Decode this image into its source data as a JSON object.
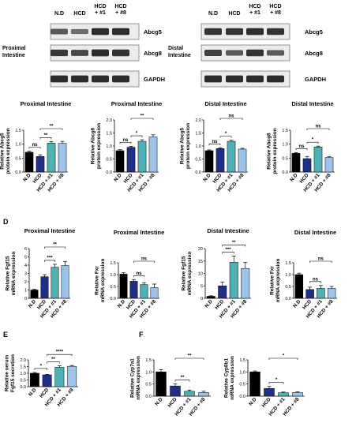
{
  "colors": {
    "nd": "#000000",
    "hcd": "#1f2f86",
    "hcd1": "#4fb0b6",
    "hcd8": "#9ec3e8",
    "blot_band": "#262626",
    "blot_bg": "#ececec"
  },
  "blots": [
    {
      "tissue": "Proximal Intestine",
      "tissue_lines": [
        "Proximal",
        "Intestine"
      ],
      "lanes": [
        "N.D",
        "HCD",
        "HCD + #1",
        "HCD + #8"
      ],
      "lane_lines": [
        [
          "N.D"
        ],
        [
          "HCD"
        ],
        [
          "HCD",
          "+ #1"
        ],
        [
          "HCD",
          "+ #8"
        ]
      ],
      "bands": [
        {
          "name": "Abcg5",
          "intensity": [
            0.6,
            0.45,
            0.95,
            0.95
          ]
        },
        {
          "name": "Abcg8",
          "intensity": [
            0.85,
            0.75,
            0.95,
            0.9
          ]
        },
        {
          "name": "GAPDH",
          "intensity": [
            0.95,
            0.95,
            0.95,
            0.95
          ]
        }
      ]
    },
    {
      "tissue": "Distal Intestine",
      "tissue_lines": [
        "Distal",
        "Intestine"
      ],
      "lanes": [
        "N.D",
        "HCD",
        "HCD + #1",
        "HCD + #8"
      ],
      "lane_lines": [
        [
          "N.D"
        ],
        [
          "HCD"
        ],
        [
          "HCD",
          "+ #1"
        ],
        [
          "HCD",
          "+ #8"
        ]
      ],
      "bands": [
        {
          "name": "Abcg5",
          "intensity": [
            0.9,
            0.9,
            0.95,
            0.9
          ]
        },
        {
          "name": "Abcg8",
          "intensity": [
            0.8,
            0.6,
            0.9,
            0.6
          ]
        },
        {
          "name": "GAPDH",
          "intensity": [
            0.95,
            0.95,
            0.95,
            0.95
          ]
        }
      ]
    }
  ],
  "panel_letters": [
    "D",
    "E",
    "F"
  ],
  "chart_data": [
    {
      "type": "bar",
      "title": "Proximal Intestine",
      "ylabel_lines": [
        "Relative Abcg5",
        "protein expression"
      ],
      "categories": [
        "N.D",
        "HCD",
        "HCD + #1",
        "HCD + #8"
      ],
      "values": [
        0.71,
        0.56,
        1.04,
        1.03
      ],
      "errors": [
        0.04,
        0.06,
        0.05,
        0.07
      ],
      "ylim": [
        0,
        1.5
      ],
      "yticks": [
        "0.0",
        "0.5",
        "1.0",
        "1.5"
      ],
      "sig": [
        {
          "a": 0,
          "b": 1,
          "label": "ns",
          "level": 1
        },
        {
          "a": 1,
          "b": 2,
          "label": "**",
          "level": 1
        },
        {
          "a": 1,
          "b": 3,
          "label": "**",
          "level": 2
        }
      ]
    },
    {
      "type": "bar",
      "title": "Proximal Intestine",
      "ylabel_lines": [
        "Relative Abcg8",
        "protein expression"
      ],
      "categories": [
        "N.D",
        "HCD",
        "HCD + #1",
        "HCD + #8"
      ],
      "values": [
        0.82,
        0.95,
        1.18,
        1.35
      ],
      "errors": [
        0.04,
        0.04,
        0.06,
        0.08
      ],
      "ylim": [
        0,
        2.0
      ],
      "yticks": [
        "0.0",
        "0.5",
        "1.0",
        "1.5",
        "2.0"
      ],
      "sig": [
        {
          "a": 0,
          "b": 1,
          "label": "ns",
          "level": 1
        },
        {
          "a": 1,
          "b": 2,
          "label": "*",
          "level": 1
        },
        {
          "a": 1,
          "b": 3,
          "label": "**",
          "level": 2
        }
      ]
    },
    {
      "type": "bar",
      "title": "Distal Intestine",
      "ylabel_lines": [
        "Relative Abcg5",
        "protein expression"
      ],
      "categories": [
        "N.D",
        "HCD",
        "HCD + #1",
        "HCD + #8"
      ],
      "values": [
        0.82,
        0.9,
        1.18,
        0.88
      ],
      "errors": [
        0.03,
        0.03,
        0.04,
        0.03
      ],
      "ylim": [
        0,
        2.0
      ],
      "yticks": [
        "0.0",
        "0.5",
        "1.0",
        "1.5",
        "2.0"
      ],
      "sig": [
        {
          "a": 0,
          "b": 1,
          "label": "ns",
          "level": 1
        },
        {
          "a": 1,
          "b": 2,
          "label": "*",
          "level": 1
        },
        {
          "a": 1,
          "b": 3,
          "label": "ns",
          "level": 2
        }
      ]
    },
    {
      "type": "bar",
      "title": "Distal Intestine",
      "ylabel_lines": [
        "Relative Abcg8",
        "protein expression"
      ],
      "categories": [
        "N.D",
        "HCD",
        "HCD + #1",
        "HCD + #8"
      ],
      "values": [
        0.67,
        0.48,
        0.9,
        0.52
      ],
      "errors": [
        0.03,
        0.08,
        0.03,
        0.03
      ],
      "ylim": [
        0,
        1.5
      ],
      "yticks": [
        "0.0",
        "0.5",
        "1.0",
        "1.5"
      ],
      "sig": [
        {
          "a": 0,
          "b": 1,
          "label": "ns",
          "level": 1
        },
        {
          "a": 1,
          "b": 2,
          "label": "*",
          "level": 1
        },
        {
          "a": 1,
          "b": 3,
          "label": "ns",
          "level": 2
        }
      ]
    },
    {
      "type": "bar",
      "title": "Proximal Intestine",
      "ylabel_lines": [
        "Relative Fgf15",
        "mRNA expression"
      ],
      "categories": [
        "N.D",
        "HCD",
        "HCD + #1",
        "HCD + #8"
      ],
      "values": [
        1.0,
        2.6,
        3.75,
        3.95
      ],
      "errors": [
        0.08,
        0.25,
        0.35,
        0.5
      ],
      "ylim": [
        0,
        6
      ],
      "yticks": [
        "0",
        "1",
        "2",
        "3",
        "4",
        "5",
        "6"
      ],
      "sig": [
        {
          "a": 1,
          "b": 2,
          "label": "***",
          "level": 1
        },
        {
          "a": 1,
          "b": 3,
          "label": "**",
          "level": 2
        }
      ]
    },
    {
      "type": "bar",
      "title": "Proximal Intestine",
      "ylabel_lines": [
        "Relative Fxr",
        "mRNA expression"
      ],
      "categories": [
        "N.D",
        "HCD",
        "HCD + #1",
        "HCD + #8"
      ],
      "values": [
        1.02,
        0.72,
        0.58,
        0.45
      ],
      "errors": [
        0.06,
        0.07,
        0.08,
        0.15
      ],
      "ylim": [
        0,
        1.5
      ],
      "yticks": [
        "0.0",
        "0.5",
        "1.0",
        "1.5"
      ],
      "sig": [
        {
          "a": 1,
          "b": 2,
          "label": "ns",
          "level": 1
        },
        {
          "a": 1,
          "b": 3,
          "label": "ns",
          "level": 2
        }
      ]
    },
    {
      "type": "bar",
      "title": "Distal Intestine",
      "ylabel_lines": [
        "Relative Fgf15",
        "mRNA expression"
      ],
      "categories": [
        "N.D",
        "HCD",
        "HCD + #1",
        "HCD + #8"
      ],
      "values": [
        0.8,
        5.0,
        14.5,
        12.0
      ],
      "errors": [
        0.2,
        1.5,
        2.5,
        2.5
      ],
      "ylim": [
        0,
        20
      ],
      "yticks": [
        "0",
        "5",
        "10",
        "15",
        "20"
      ],
      "sig": [
        {
          "a": 1,
          "b": 2,
          "label": "***",
          "level": 1
        },
        {
          "a": 1,
          "b": 3,
          "label": "**",
          "level": 2
        }
      ]
    },
    {
      "type": "bar",
      "title": "Distal Intestine",
      "ylabel_lines": [
        "Relative Fxr",
        "mRNA expression"
      ],
      "categories": [
        "N.D",
        "HCD",
        "HCD + #1",
        "HCD + #8"
      ],
      "values": [
        1.0,
        0.37,
        0.42,
        0.42
      ],
      "errors": [
        0.06,
        0.1,
        0.12,
        0.08
      ],
      "ylim": [
        0,
        1.5
      ],
      "yticks": [
        "0.0",
        "0.5",
        "1.0",
        "1.5"
      ],
      "sig": [
        {
          "a": 1,
          "b": 2,
          "label": "ns",
          "level": 1
        },
        {
          "a": 1,
          "b": 3,
          "label": "ns",
          "level": 2
        }
      ]
    },
    {
      "type": "bar",
      "title": "",
      "ylabel_lines": [
        "Relative serum",
        "Fgf15 secretion"
      ],
      "categories": [
        "N.D",
        "HCD",
        "HCD + #1",
        "HCD + #8"
      ],
      "values": [
        1.0,
        0.88,
        1.45,
        1.52
      ],
      "errors": [
        0.06,
        0.04,
        0.1,
        0.06
      ],
      "ylim": [
        0,
        2.0
      ],
      "yticks": [
        "0.0",
        "0.5",
        "1.0",
        "1.5",
        "2.0"
      ],
      "sig": [
        {
          "a": 0,
          "b": 1,
          "label": "*",
          "level": 1
        },
        {
          "a": 1,
          "b": 2,
          "label": "**",
          "level": 1
        },
        {
          "a": 1,
          "b": 3,
          "label": "****",
          "level": 2
        }
      ]
    },
    {
      "type": "bar",
      "title": "",
      "ylabel_lines": [
        "Relative Cyp7a1",
        "mRNA expression"
      ],
      "categories": [
        "N.D",
        "HCD",
        "HCD + #1",
        "HCD + #8"
      ],
      "values": [
        1.0,
        0.42,
        0.2,
        0.15
      ],
      "errors": [
        0.1,
        0.08,
        0.05,
        0.05
      ],
      "ylim": [
        0,
        1.5
      ],
      "yticks": [
        "0.0",
        "0.5",
        "1.0",
        "1.5"
      ],
      "sig": [
        {
          "a": 1,
          "b": 2,
          "label": "**",
          "level": 1
        },
        {
          "a": 1,
          "b": 3,
          "label": "**",
          "level": 2
        }
      ]
    },
    {
      "type": "bar",
      "title": "",
      "ylabel_lines": [
        "Relative Cyp8b1",
        "mRNA expression"
      ],
      "categories": [
        "N.D",
        "HCD",
        "HCD + #1",
        "HCD + #8"
      ],
      "values": [
        1.0,
        0.32,
        0.14,
        0.15
      ],
      "errors": [
        0.04,
        0.08,
        0.03,
        0.03
      ],
      "ylim": [
        0,
        1.5
      ],
      "yticks": [
        "0.0",
        "0.5",
        "1.0",
        "1.5"
      ],
      "sig": [
        {
          "a": 1,
          "b": 2,
          "label": "*",
          "level": 1
        },
        {
          "a": 1,
          "b": 3,
          "label": "*",
          "level": 2
        }
      ]
    }
  ]
}
